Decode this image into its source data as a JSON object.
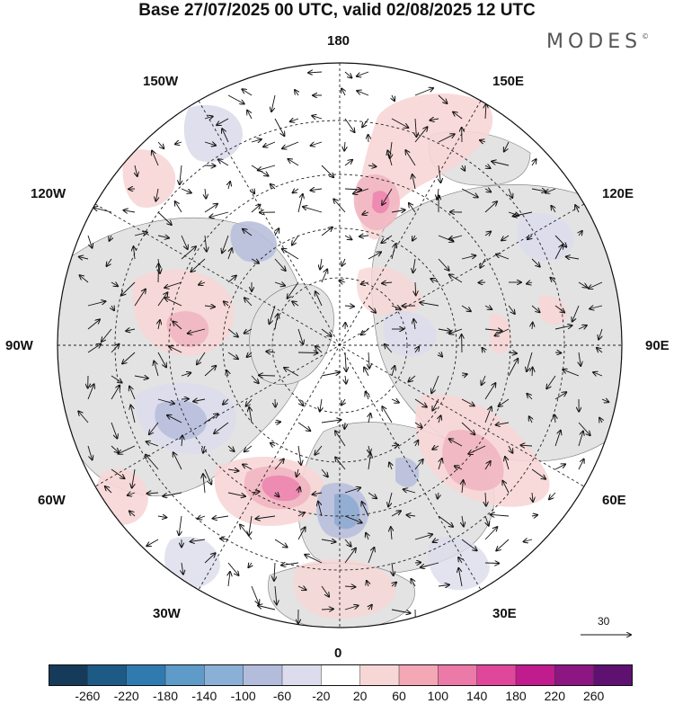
{
  "title": "Base 27/07/2025 00 UTC, valid 02/08/2025 12 UTC",
  "brand": "MODES",
  "brand_mark": "©",
  "longitude_labels": {
    "top": "180",
    "bottom": "0",
    "left": "90W",
    "right": "90E",
    "upper_left_1": "150W",
    "upper_left_2": "120W",
    "lower_left_1": "60W",
    "lower_left_2": "30W",
    "upper_right_1": "150E",
    "upper_right_2": "120E",
    "lower_right_1": "60E",
    "lower_right_2": "30E"
  },
  "wind_scale": {
    "value": "30"
  },
  "colorbar": {
    "ticks": [
      "-260",
      "-220",
      "-180",
      "-140",
      "-100",
      "-60",
      "-20",
      "20",
      "60",
      "100",
      "140",
      "180",
      "220",
      "260"
    ],
    "colors": [
      "#163a5a",
      "#1d5a86",
      "#2f7bb0",
      "#5f9bc8",
      "#8bb0d8",
      "#b4bcdc",
      "#dcdcec",
      "#ffffff",
      "#f7d6d6",
      "#f4a7b4",
      "#ec7aa8",
      "#e0479a",
      "#c01c8e",
      "#8c1682",
      "#5e1170"
    ]
  },
  "colors": {
    "land": "#e3e3e3",
    "pos_light": "#f7d6d6",
    "pos_mid": "#f1b6c1",
    "pos_strong": "#ec86b0",
    "neg_light": "#dcdcec",
    "neg_mid": "#b8bfdc",
    "neg_strong": "#8aa7cf"
  }
}
